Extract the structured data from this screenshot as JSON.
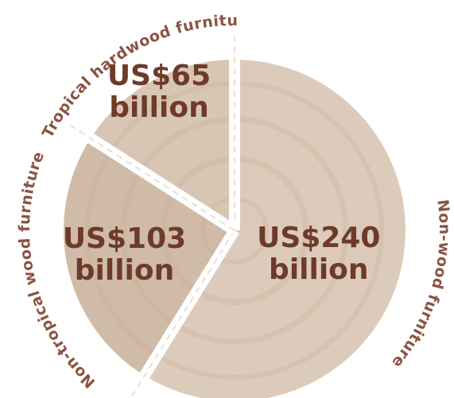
{
  "chart_data": {
    "type": "pie",
    "categories": [
      "Non-wood furniture",
      "Non-tropical wood furniture",
      "Tropical hardwood furniture"
    ],
    "values": [
      240,
      103,
      65
    ],
    "value_labels": [
      "US$240 billion",
      "US$103 billion",
      "US$65 billion"
    ],
    "colors": [
      "#dccbbb",
      "#cfbba8",
      "#d8c6b4"
    ]
  }
}
